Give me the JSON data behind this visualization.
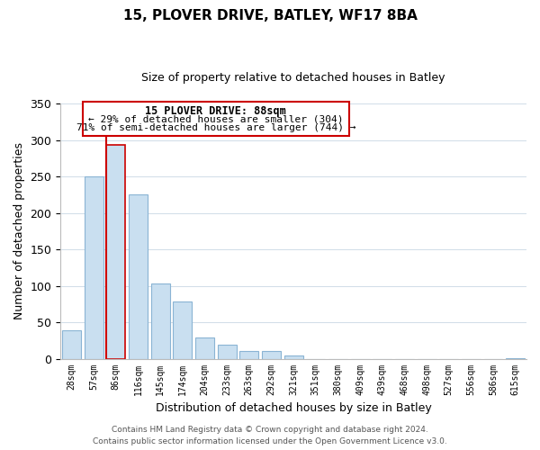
{
  "title": "15, PLOVER DRIVE, BATLEY, WF17 8BA",
  "subtitle": "Size of property relative to detached houses in Batley",
  "xlabel": "Distribution of detached houses by size in Batley",
  "ylabel": "Number of detached properties",
  "bar_labels": [
    "28sqm",
    "57sqm",
    "86sqm",
    "116sqm",
    "145sqm",
    "174sqm",
    "204sqm",
    "233sqm",
    "263sqm",
    "292sqm",
    "321sqm",
    "351sqm",
    "380sqm",
    "409sqm",
    "439sqm",
    "468sqm",
    "498sqm",
    "527sqm",
    "556sqm",
    "586sqm",
    "615sqm"
  ],
  "bar_values": [
    39,
    250,
    293,
    225,
    103,
    78,
    29,
    19,
    11,
    10,
    4,
    0,
    0,
    0,
    0,
    0,
    0,
    0,
    0,
    0,
    1
  ],
  "bar_color": "#c9dff0",
  "bar_edge_color": "#8ab4d4",
  "highlight_bar_index": 2,
  "highlight_line_color": "#cc0000",
  "annotation_title": "15 PLOVER DRIVE: 88sqm",
  "annotation_line1": "← 29% of detached houses are smaller (304)",
  "annotation_line2": "71% of semi-detached houses are larger (744) →",
  "annotation_box_color": "#ffffff",
  "annotation_box_edge": "#cc0000",
  "ylim": [
    0,
    350
  ],
  "yticks": [
    0,
    50,
    100,
    150,
    200,
    250,
    300,
    350
  ],
  "footer1": "Contains HM Land Registry data © Crown copyright and database right 2024.",
  "footer2": "Contains public sector information licensed under the Open Government Licence v3.0.",
  "bg_color": "#ffffff",
  "grid_color": "#d0dce8"
}
